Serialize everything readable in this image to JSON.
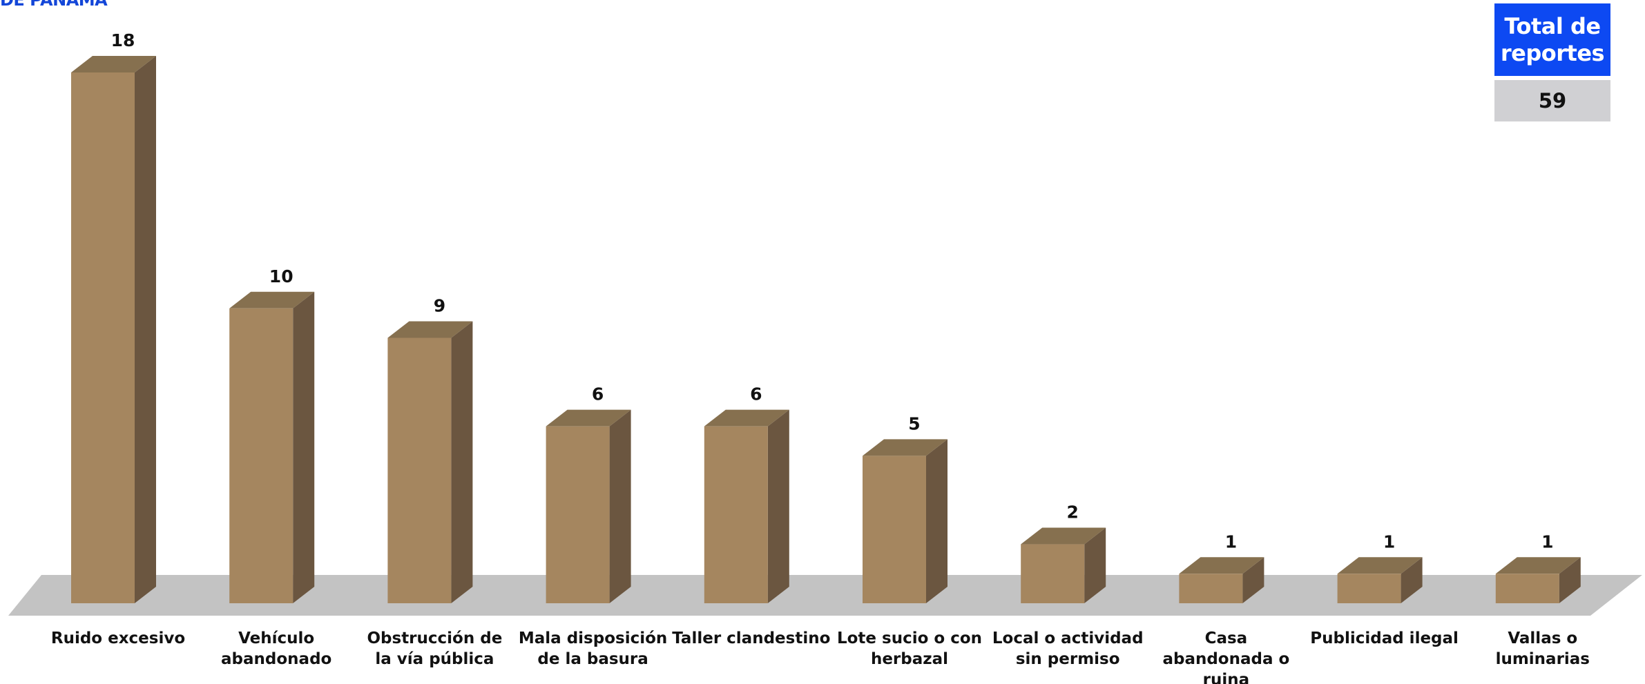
{
  "header": {
    "title_fragment": "DE PANAMÁ"
  },
  "total_box": {
    "title": "Total de reportes",
    "value": "59"
  },
  "colors": {
    "bar_front": "#a5865f",
    "bar_side": "#6b5640",
    "bar_top": "#86704f",
    "floor": "#c3c3c3",
    "accent": "#0d49f2"
  },
  "chart_data": {
    "type": "bar",
    "categories": [
      "Ruido excesivo",
      "Vehículo abandonado",
      "Obstrucción de la vía pública",
      "Mala disposición de la basura",
      "Taller clandestino",
      "Lote sucio o con herbazal",
      "Local o actividad sin permiso",
      "Casa abandonada o ruina",
      "Publicidad ilegal",
      "Vallas o luminarias"
    ],
    "category_label_lines": [
      [
        "Ruido excesivo"
      ],
      [
        "Vehículo",
        "abandonado"
      ],
      [
        "Obstrucción de",
        "la vía pública"
      ],
      [
        "Mala disposición",
        "de la basura"
      ],
      [
        "Taller clandestino"
      ],
      [
        "Lote sucio o con",
        "herbazal"
      ],
      [
        "Local o actividad",
        "sin permiso"
      ],
      [
        "Casa",
        "abandonada o",
        "ruina"
      ],
      [
        "Publicidad ilegal"
      ],
      [
        "Vallas o",
        "luminarias"
      ]
    ],
    "values": [
      18,
      10,
      9,
      6,
      6,
      5,
      2,
      1,
      1,
      1
    ],
    "ylim": [
      0,
      18
    ],
    "data_labels": true,
    "grid": false,
    "legend": "none",
    "style": "3d-column"
  }
}
